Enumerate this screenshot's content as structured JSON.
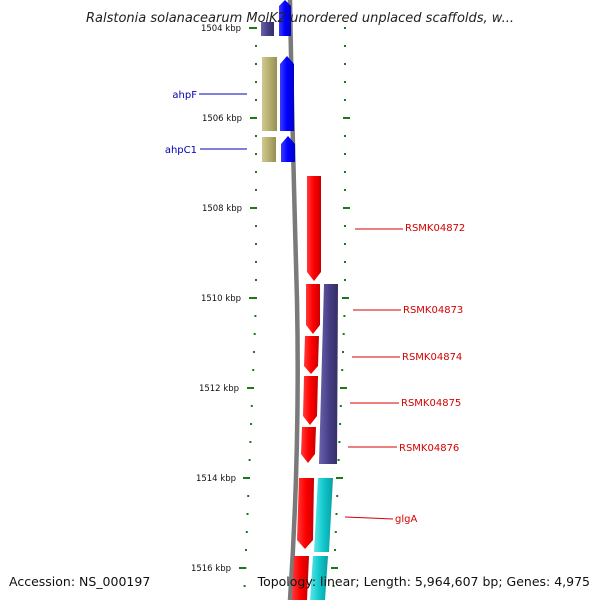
{
  "title": "Ralstonia solanacearum MolK2 unordered unplaced scaffolds, w...",
  "footer": {
    "accession": "Accession: NS_000197",
    "topology": "Topology: linear; Length: 5,964,607 bp; Genes: 4,975"
  },
  "ruler": {
    "major_ticks": [
      "1504 kbp",
      "1506 kbp",
      "1508 kbp",
      "1510 kbp",
      "1512 kbp",
      "1514 kbp",
      "1516 kbp"
    ]
  },
  "genes_left": [
    {
      "name": "ahpF"
    },
    {
      "name": "ahpC1"
    }
  ],
  "genes_right": [
    {
      "name": "RSMK04872"
    },
    {
      "name": "RSMK04873"
    },
    {
      "name": "RSMK04874"
    },
    {
      "name": "RSMK04875"
    },
    {
      "name": "RSMK04876"
    },
    {
      "name": "glgA"
    }
  ],
  "colors": {
    "forward_strand": "#0000ff",
    "forward_operon": "#b4ae6e",
    "reverse_strand": "#ff0000",
    "reverse_operon": "#484088",
    "reverse_cyan": "#11c8cc",
    "axis": "#808080",
    "tick": "#1a7a1a",
    "label_left": "#0000b4",
    "label_right": "#d40000"
  }
}
